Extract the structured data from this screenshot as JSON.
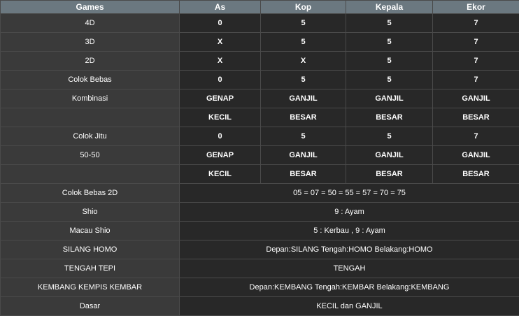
{
  "table": {
    "header": [
      "Games",
      "As",
      "Kop",
      "Kepala",
      "Ekor"
    ],
    "rows": [
      [
        "4D",
        "0",
        "5",
        "5",
        "7"
      ],
      [
        "3D",
        "X",
        "5",
        "5",
        "7"
      ],
      [
        "2D",
        "X",
        "X",
        "5",
        "7"
      ],
      [
        "Colok Bebas",
        "0",
        "5",
        "5",
        "7"
      ],
      [
        "Kombinasi",
        "GENAP",
        "GANJIL",
        "GANJIL",
        "GANJIL"
      ],
      [
        null,
        "KECIL",
        "BESAR",
        "BESAR",
        "BESAR"
      ],
      [
        "Colok Jitu",
        "0",
        "5",
        "5",
        "7"
      ],
      [
        "50-50",
        "GENAP",
        "GANJIL",
        "GANJIL",
        "GANJIL"
      ],
      [
        null,
        "KECIL",
        "BESAR",
        "BESAR",
        "BESAR"
      ],
      [
        "Colok Bebas 2D",
        "05 = 07 = 50 = 55 = 57 = 70 = 75"
      ],
      [
        "Shio",
        "9 : Ayam"
      ],
      [
        "Macau Shio",
        "5 : Kerbau , 9 : Ayam"
      ],
      [
        "SILANG HOMO",
        "Depan:SILANG Tengah:HOMO Belakang:HOMO"
      ],
      [
        "TENGAH TEPI",
        "TENGAH"
      ],
      [
        "KEMBANG KEMPIS KEMBAR",
        "Depan:KEMBANG Tengah:KEMBAR Belakang:KEMBANG"
      ],
      [
        "Dasar",
        "KECIL dan GANJIL"
      ]
    ]
  }
}
